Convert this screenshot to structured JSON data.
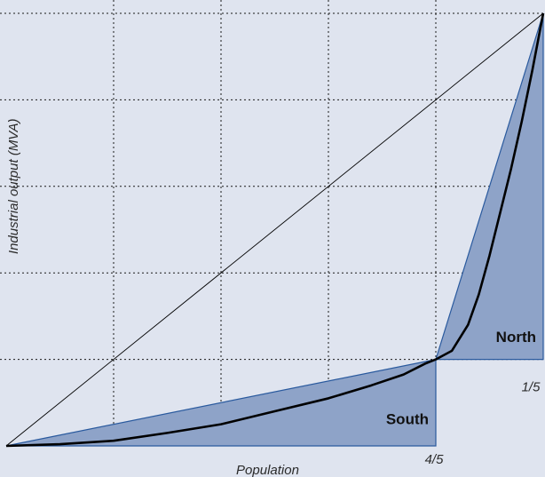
{
  "chart_data": {
    "type": "line",
    "xlabel": "Population",
    "ylabel": "Industrial output (MVA)",
    "xlim": [
      0,
      1
    ],
    "ylim": [
      0,
      1
    ],
    "grid": true,
    "tick_labels": {
      "x_south": "4/5",
      "x_north": "1/5"
    },
    "regions": [
      {
        "label": "South",
        "triangle": [
          [
            0,
            0
          ],
          [
            0.8,
            0
          ],
          [
            0.8,
            0.2
          ]
        ]
      },
      {
        "label": "North",
        "triangle": [
          [
            0.8,
            0.2
          ],
          [
            1,
            0.2
          ],
          [
            1,
            1
          ]
        ]
      }
    ],
    "equality_line": {
      "x": [
        0,
        1
      ],
      "y": [
        0,
        1
      ]
    },
    "lorenz_curve": {
      "x": [
        0,
        0.1,
        0.2,
        0.3,
        0.4,
        0.5,
        0.6,
        0.68,
        0.74,
        0.78,
        0.8,
        0.83,
        0.86,
        0.88,
        0.9,
        0.92,
        0.94,
        0.96,
        0.98,
        1.0
      ],
      "y": [
        0,
        0.004,
        0.012,
        0.03,
        0.05,
        0.08,
        0.11,
        0.14,
        0.165,
        0.19,
        0.2,
        0.22,
        0.28,
        0.35,
        0.44,
        0.54,
        0.64,
        0.75,
        0.87,
        1.0
      ]
    },
    "colors": {
      "background": "#dfe4ef",
      "area_fill": "#8ea3c8",
      "area_stroke": "#2a5a9e",
      "curve": "#000000"
    }
  }
}
